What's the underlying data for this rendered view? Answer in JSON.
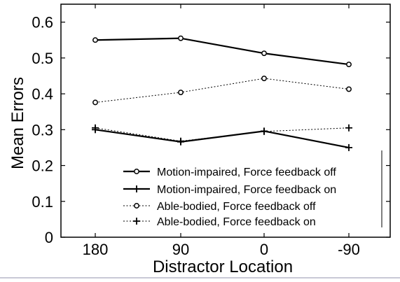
{
  "chart_data": {
    "type": "line",
    "xlabel": "Distractor Location",
    "ylabel": "Mean Errors",
    "categories": [
      "180",
      "90",
      "0",
      "-90"
    ],
    "ylim": [
      0,
      0.65
    ],
    "yticks": [
      "0",
      "0.1",
      "0.2",
      "0.3",
      "0.4",
      "0.5",
      "0.6"
    ],
    "grid": false,
    "legend_position": "bottom-right",
    "series": [
      {
        "name": "Motion-impaired, Force feedback off",
        "values": [
          0.55,
          0.555,
          0.513,
          0.482
        ],
        "line": "solid",
        "marker": "circle"
      },
      {
        "name": "Motion-impaired, Force feedback on",
        "values": [
          0.3,
          0.266,
          0.296,
          0.25
        ],
        "line": "solid",
        "marker": "plus"
      },
      {
        "name": "Able-bodied, Force feedback off",
        "values": [
          0.376,
          0.404,
          0.443,
          0.413
        ],
        "line": "dotted",
        "marker": "circle"
      },
      {
        "name": "Able-bodied, Force feedback on",
        "values": [
          0.305,
          0.268,
          0.295,
          0.305
        ],
        "line": "dotted",
        "marker": "plus"
      }
    ]
  }
}
